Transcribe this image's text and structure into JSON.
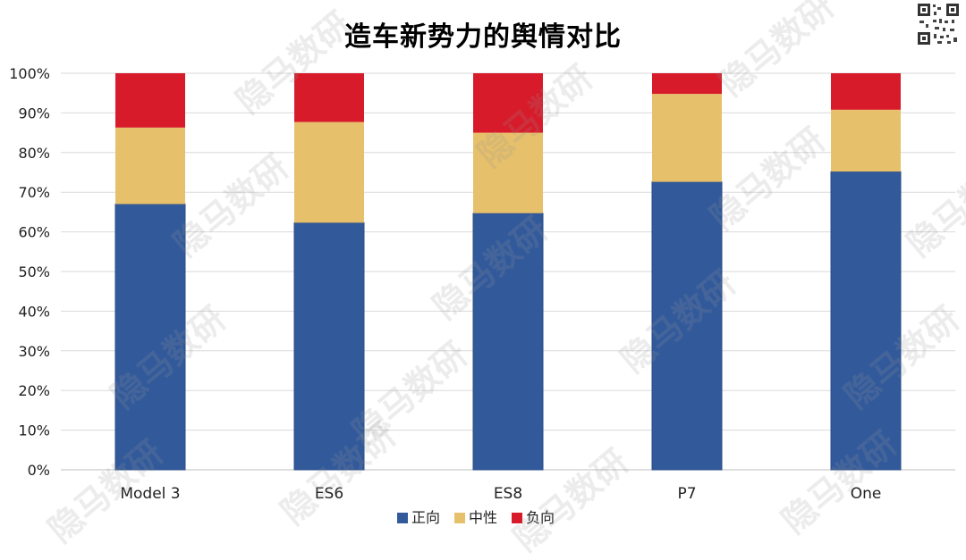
{
  "title": "造车新势力的舆情对比",
  "watermark": "隐马数研",
  "chart_data": {
    "type": "bar",
    "stacked": true,
    "categories": [
      "Model 3",
      "ES6",
      "ES8",
      "P7",
      "One"
    ],
    "series": [
      {
        "name": "正向",
        "color": "#325a9b",
        "values": [
          67,
          62.3,
          64.7,
          72.6,
          75.2
        ]
      },
      {
        "name": "中性",
        "color": "#e6c06b",
        "values": [
          19.3,
          25.4,
          20.3,
          22.2,
          15.6
        ]
      },
      {
        "name": "负向",
        "color": "#d71b2a",
        "values": [
          13.7,
          12.3,
          15,
          5.2,
          9.2
        ]
      }
    ],
    "ylim": [
      0,
      100
    ],
    "yticks": [
      "0%",
      "10%",
      "20%",
      "30%",
      "40%",
      "50%",
      "60%",
      "70%",
      "80%",
      "90%",
      "100%"
    ],
    "grid": true,
    "legend_position": "bottom"
  }
}
